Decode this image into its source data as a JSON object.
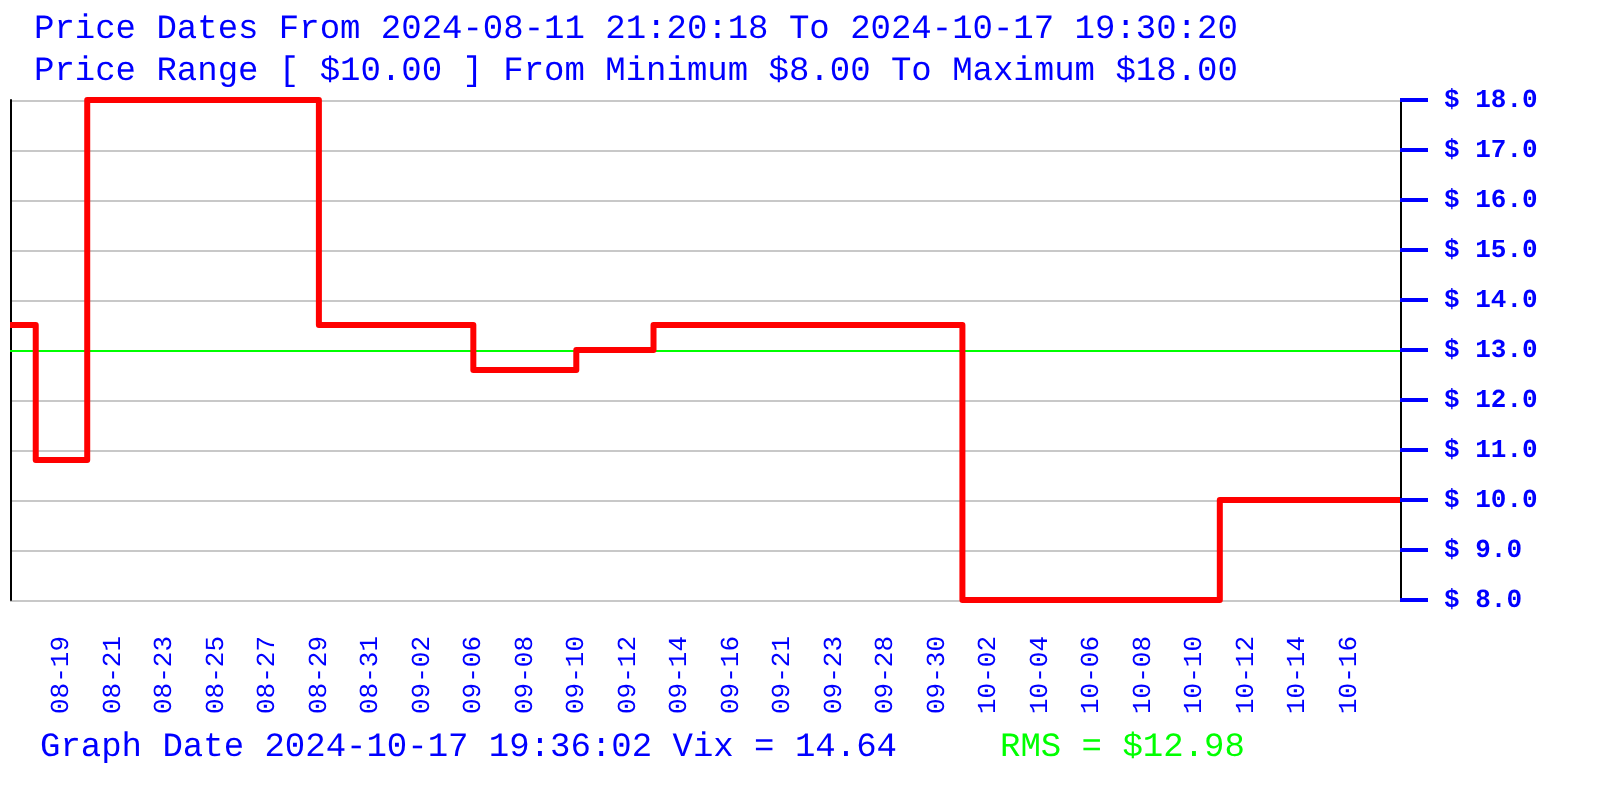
{
  "chart_data": {
    "type": "step",
    "title": "Price Dates From 2024-08-11 21:20:18 To 2024-10-17 19:30:20",
    "subtitle": "Price Range [ $10.00 ] From Minimum $8.00 To Maximum $18.00",
    "annotations": [
      "Graph Date 2024-10-17 19:36:02 Vix = 14.64"
    ],
    "categories": [
      null,
      null,
      "08-19",
      null,
      "08-21",
      null,
      "08-23",
      null,
      "08-25",
      null,
      "08-27",
      null,
      "08-29",
      null,
      "08-31",
      null,
      "09-02",
      null,
      "09-06",
      null,
      "09-08",
      null,
      "09-10",
      null,
      "09-12",
      null,
      "09-14",
      null,
      "09-16",
      null,
      "09-21",
      null,
      "09-23",
      null,
      "09-28",
      null,
      "09-30",
      null,
      "10-02",
      null,
      "10-04",
      null,
      "10-06",
      null,
      "10-08",
      null,
      "10-10",
      null,
      "10-12",
      null,
      "10-14",
      null,
      "10-16",
      null,
      null
    ],
    "series": [
      {
        "color": "#ff0000",
        "values": [
          13.5,
          10.8,
          10.8,
          18,
          18,
          18,
          18,
          18,
          18,
          18,
          18,
          18,
          13.5,
          13.5,
          13.5,
          13.5,
          13.5,
          13.5,
          12.6,
          12.6,
          12.6,
          12.6,
          13.0,
          13.0,
          13.0,
          13.5,
          13.5,
          13.5,
          13.5,
          13.5,
          13.5,
          13.5,
          13.5,
          13.5,
          13.5,
          13.5,
          13.5,
          8,
          8,
          8,
          8,
          8,
          8,
          8,
          8,
          8,
          8,
          10,
          10,
          10,
          10,
          10,
          10,
          10,
          10
        ]
      }
    ],
    "ylim": [
      8,
      18
    ],
    "yticks": [
      {
        "value": 8,
        "label": "$ 8.0"
      },
      {
        "value": 9,
        "label": "$ 9.0"
      },
      {
        "value": 10,
        "label": "$ 10.0"
      },
      {
        "value": 11,
        "label": "$ 11.0"
      },
      {
        "value": 12,
        "label": "$ 12.0"
      },
      {
        "value": 13,
        "label": "$ 13.0"
      },
      {
        "value": 14,
        "label": "$ 14.0"
      },
      {
        "value": 15,
        "label": "$ 15.0"
      },
      {
        "value": 16,
        "label": "$ 16.0"
      },
      {
        "value": 17,
        "label": "$ 17.0"
      },
      {
        "value": 18,
        "label": "$ 18.0"
      }
    ],
    "ref_lines": [
      {
        "axis": "y",
        "value": 12.98,
        "label": "RMS = $12.98",
        "color": "#00ff00"
      }
    ],
    "grid": "y",
    "marker": "none",
    "line_style": "solid"
  }
}
